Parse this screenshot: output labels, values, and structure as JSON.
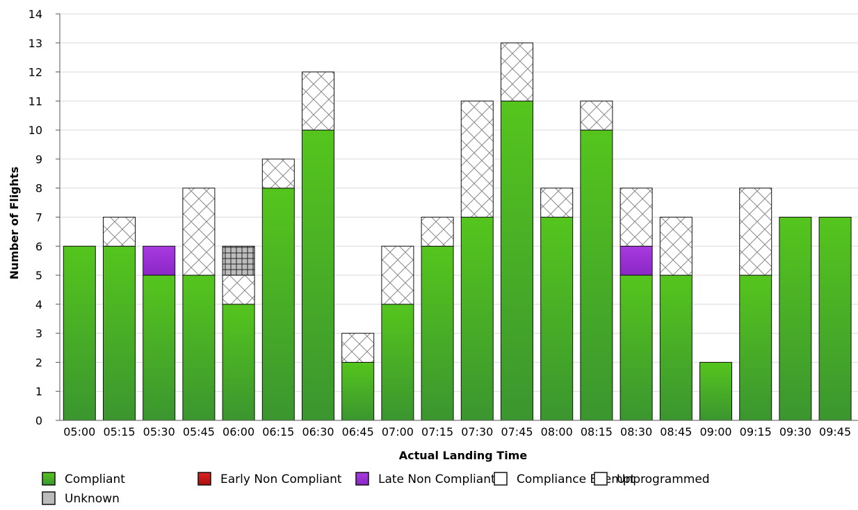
{
  "chart_data": {
    "type": "bar",
    "stacked": true,
    "xlabel": "Actual Landing Time",
    "ylabel": "Number of Flights",
    "ylim": [
      0,
      14
    ],
    "yticks": [
      0,
      1,
      2,
      3,
      4,
      5,
      6,
      7,
      8,
      9,
      10,
      11,
      12,
      13,
      14
    ],
    "grid": true,
    "legend_position": "bottom",
    "categories": [
      "05:00",
      "05:15",
      "05:30",
      "05:45",
      "06:00",
      "06:15",
      "06:30",
      "06:45",
      "07:00",
      "07:15",
      "07:30",
      "07:45",
      "08:00",
      "08:15",
      "08:30",
      "08:45",
      "09:00",
      "09:15",
      "09:30",
      "09:45"
    ],
    "series": [
      {
        "name": "Compliant",
        "color": "#4fbf1f",
        "pattern": "solid",
        "values": [
          6,
          6,
          5,
          5,
          4,
          8,
          10,
          2,
          4,
          6,
          7,
          11,
          7,
          10,
          5,
          5,
          2,
          5,
          7,
          7
        ]
      },
      {
        "name": "Early Non Compliant",
        "color": "#cc1111",
        "pattern": "solid",
        "values": [
          0,
          0,
          0,
          0,
          0,
          0,
          0,
          0,
          0,
          0,
          0,
          0,
          0,
          0,
          0,
          0,
          0,
          0,
          0,
          0
        ]
      },
      {
        "name": "Late Non Compliant",
        "color": "#9b30d8",
        "pattern": "solid",
        "values": [
          0,
          0,
          1,
          0,
          0,
          0,
          0,
          0,
          0,
          0,
          0,
          0,
          0,
          0,
          1,
          0,
          0,
          0,
          0,
          0
        ]
      },
      {
        "name": "Compliance Exempt",
        "color": "#ffffff",
        "pattern": "crosshatch",
        "values": [
          0,
          1,
          0,
          3,
          1,
          1,
          2,
          1,
          2,
          1,
          4,
          2,
          1,
          1,
          2,
          2,
          0,
          3,
          0,
          0
        ]
      },
      {
        "name": "Unprogrammed",
        "color": "#ffffff",
        "pattern": "solid",
        "values": [
          0,
          0,
          0,
          0,
          0,
          0,
          0,
          0,
          0,
          0,
          0,
          0,
          0,
          0,
          0,
          0,
          0,
          0,
          0,
          0
        ]
      },
      {
        "name": "Unknown",
        "color": "#bbbbbb",
        "pattern": "grid",
        "values": [
          0,
          0,
          0,
          0,
          1,
          0,
          0,
          0,
          0,
          0,
          0,
          0,
          0,
          0,
          0,
          0,
          0,
          0,
          0,
          0
        ]
      }
    ]
  }
}
